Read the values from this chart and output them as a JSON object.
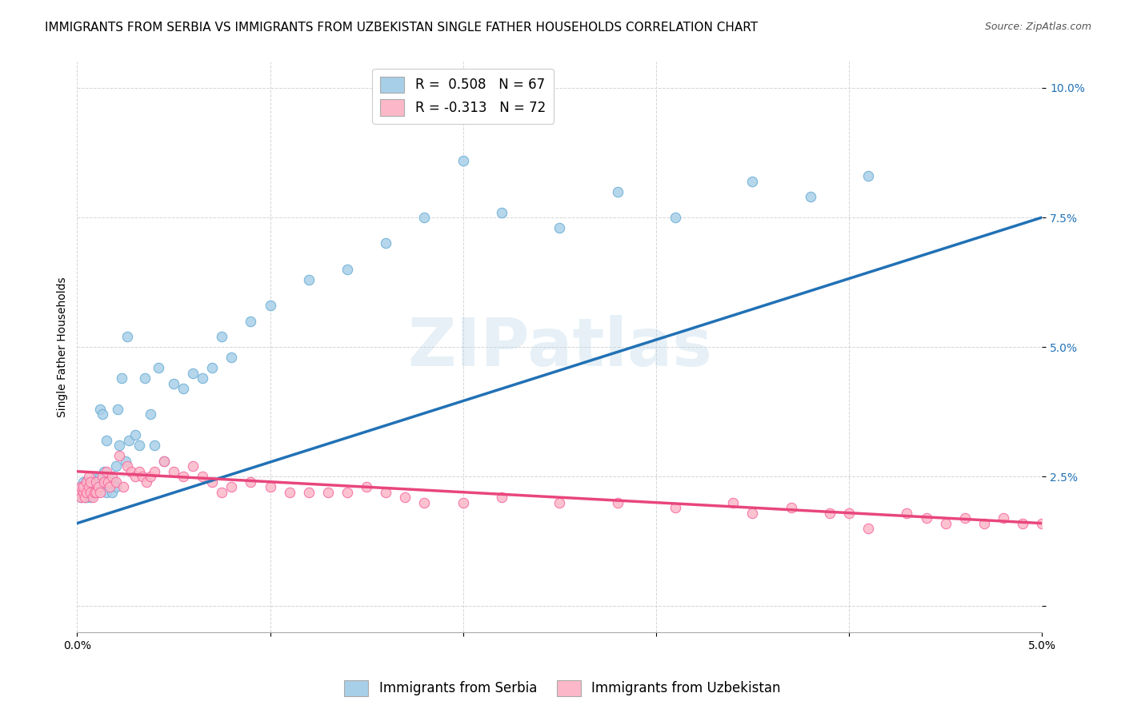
{
  "title": "IMMIGRANTS FROM SERBIA VS IMMIGRANTS FROM UZBEKISTAN SINGLE FATHER HOUSEHOLDS CORRELATION CHART",
  "source": "Source: ZipAtlas.com",
  "ylabel": "Single Father Households",
  "yticks": [
    0.0,
    0.025,
    0.05,
    0.075,
    0.1
  ],
  "ytick_labels": [
    "",
    "2.5%",
    "5.0%",
    "7.5%",
    "10.0%"
  ],
  "xlim": [
    0.0,
    0.05
  ],
  "ylim": [
    -0.005,
    0.105
  ],
  "serbia_color": "#a8cfe8",
  "serbia_edge_color": "#6baed6",
  "uzbekistan_color": "#fcb8c8",
  "uzbekistan_edge_color": "#f768a1",
  "trendline_serbia_color": "#2171b5",
  "trendline_uzbekistan_color": "#e8467c",
  "legend_serbia_label": "R =  0.508   N = 67",
  "legend_uzbekistan_label": "R = -0.313   N = 72",
  "legend_serbia_patch_color": "#a8cfe8",
  "legend_uzbekistan_patch_color": "#fcb8c8",
  "watermark_text": "ZIPatlas",
  "serbia_x": [
    0.0001,
    0.0002,
    0.0002,
    0.0003,
    0.0003,
    0.0004,
    0.0004,
    0.0005,
    0.0005,
    0.0005,
    0.0006,
    0.0006,
    0.0007,
    0.0007,
    0.0008,
    0.0008,
    0.0009,
    0.001,
    0.001,
    0.0011,
    0.0011,
    0.0012,
    0.0012,
    0.0013,
    0.0014,
    0.0015,
    0.0015,
    0.0016,
    0.0017,
    0.0018,
    0.0019,
    0.002,
    0.002,
    0.0021,
    0.0022,
    0.0023,
    0.0025,
    0.0026,
    0.0027,
    0.003,
    0.0032,
    0.0035,
    0.0038,
    0.004,
    0.0042,
    0.0045,
    0.005,
    0.0055,
    0.006,
    0.0065,
    0.007,
    0.0075,
    0.008,
    0.009,
    0.01,
    0.012,
    0.014,
    0.016,
    0.018,
    0.02,
    0.022,
    0.025,
    0.028,
    0.031,
    0.035,
    0.038,
    0.041
  ],
  "serbia_y": [
    0.022,
    0.021,
    0.023,
    0.022,
    0.024,
    0.021,
    0.023,
    0.022,
    0.024,
    0.021,
    0.022,
    0.023,
    0.021,
    0.024,
    0.022,
    0.023,
    0.024,
    0.022,
    0.025,
    0.024,
    0.023,
    0.025,
    0.038,
    0.037,
    0.026,
    0.022,
    0.032,
    0.025,
    0.024,
    0.022,
    0.024,
    0.023,
    0.027,
    0.038,
    0.031,
    0.044,
    0.028,
    0.052,
    0.032,
    0.033,
    0.031,
    0.044,
    0.037,
    0.031,
    0.046,
    0.028,
    0.043,
    0.042,
    0.045,
    0.044,
    0.046,
    0.052,
    0.048,
    0.055,
    0.058,
    0.063,
    0.065,
    0.07,
    0.075,
    0.086,
    0.076,
    0.073,
    0.08,
    0.075,
    0.082,
    0.079,
    0.083
  ],
  "uzbekistan_x": [
    0.0001,
    0.0002,
    0.0002,
    0.0003,
    0.0003,
    0.0004,
    0.0005,
    0.0005,
    0.0006,
    0.0006,
    0.0007,
    0.0007,
    0.0008,
    0.0009,
    0.001,
    0.001,
    0.0011,
    0.0012,
    0.0013,
    0.0014,
    0.0015,
    0.0016,
    0.0017,
    0.0018,
    0.002,
    0.0022,
    0.0024,
    0.0026,
    0.0028,
    0.003,
    0.0032,
    0.0034,
    0.0036,
    0.0038,
    0.004,
    0.0045,
    0.005,
    0.0055,
    0.006,
    0.0065,
    0.007,
    0.0075,
    0.008,
    0.009,
    0.01,
    0.011,
    0.012,
    0.013,
    0.014,
    0.015,
    0.016,
    0.017,
    0.018,
    0.02,
    0.022,
    0.025,
    0.028,
    0.031,
    0.034,
    0.037,
    0.04,
    0.043,
    0.046,
    0.048,
    0.049,
    0.05,
    0.035,
    0.039,
    0.044,
    0.047,
    0.041,
    0.045
  ],
  "uzbekistan_y": [
    0.022,
    0.021,
    0.023,
    0.022,
    0.023,
    0.021,
    0.022,
    0.024,
    0.023,
    0.025,
    0.022,
    0.024,
    0.021,
    0.022,
    0.022,
    0.024,
    0.023,
    0.022,
    0.025,
    0.024,
    0.026,
    0.024,
    0.023,
    0.025,
    0.024,
    0.029,
    0.023,
    0.027,
    0.026,
    0.025,
    0.026,
    0.025,
    0.024,
    0.025,
    0.026,
    0.028,
    0.026,
    0.025,
    0.027,
    0.025,
    0.024,
    0.022,
    0.023,
    0.024,
    0.023,
    0.022,
    0.022,
    0.022,
    0.022,
    0.023,
    0.022,
    0.021,
    0.02,
    0.02,
    0.021,
    0.02,
    0.02,
    0.019,
    0.02,
    0.019,
    0.018,
    0.018,
    0.017,
    0.017,
    0.016,
    0.016,
    0.018,
    0.018,
    0.017,
    0.016,
    0.015,
    0.016
  ],
  "serbia_trend_x": [
    0.0,
    0.05
  ],
  "serbia_trend_y": [
    0.016,
    0.075
  ],
  "uzbekistan_trend_x": [
    0.0,
    0.05
  ],
  "uzbekistan_trend_y": [
    0.026,
    0.016
  ],
  "background_color": "#ffffff",
  "grid_color": "#d5d5d5",
  "title_fontsize": 11,
  "source_fontsize": 9,
  "axis_label_fontsize": 10,
  "tick_fontsize": 10,
  "legend_fontsize": 12
}
